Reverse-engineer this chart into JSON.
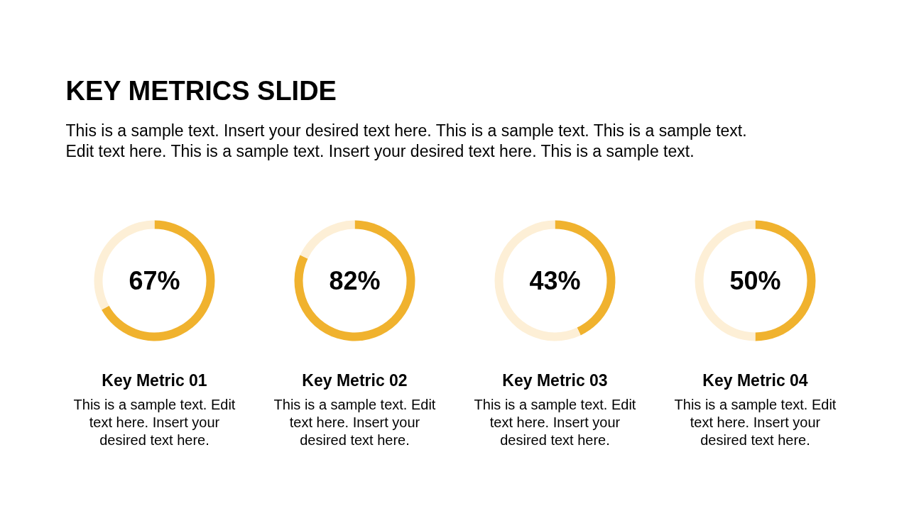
{
  "chart_data": [
    {
      "type": "other",
      "title": "KEY METRICS SLIDE",
      "subtitle": "This is a sample text. Insert your desired text here. This is a sample text. This is a sample text. Edit text here. This is a sample text. Insert your desired text here. This is a sample text."
    },
    {
      "type": "donut",
      "title": "Key Metric 01",
      "categories": [
        null,
        null
      ],
      "values": [
        67,
        33
      ],
      "colors": [
        "#f0b22e",
        "#fdefd6"
      ],
      "value_labels": [
        "67%",
        null
      ],
      "annotations": [
        "This is a sample text. Edit text here. Insert your desired text here."
      ]
    },
    {
      "type": "donut",
      "title": "Key Metric 02",
      "categories": [
        null,
        null
      ],
      "values": [
        82,
        18
      ],
      "colors": [
        "#f0b22e",
        "#fdefd6"
      ],
      "value_labels": [
        "82%",
        null
      ],
      "annotations": [
        "This is a sample text. Edit text here. Insert your desired text here."
      ]
    },
    {
      "type": "donut",
      "title": "Key Metric 03",
      "categories": [
        null,
        null
      ],
      "values": [
        43,
        57
      ],
      "colors": [
        "#f0b22e",
        "#fdefd6"
      ],
      "value_labels": [
        "43%",
        null
      ],
      "annotations": [
        "This is a sample text. Edit text here. Insert your desired text here."
      ]
    },
    {
      "type": "donut",
      "title": "Key Metric 04",
      "categories": [
        null,
        null
      ],
      "values": [
        50,
        50
      ],
      "colors": [
        "#f0b22e",
        "#fdefd6"
      ],
      "value_labels": [
        "50%",
        null
      ],
      "annotations": [
        "This is a sample text. Edit text here. Insert your desired text here."
      ]
    }
  ]
}
